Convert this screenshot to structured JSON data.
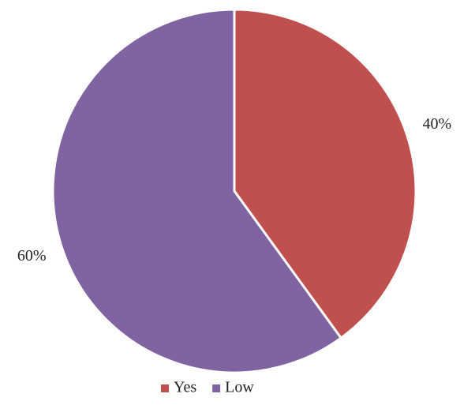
{
  "chart_data": {
    "type": "pie",
    "categories": [
      "Yes",
      "Low"
    ],
    "values": [
      40,
      60
    ],
    "value_labels": [
      "40%",
      "60%"
    ],
    "colors": [
      "#c0504d",
      "#8064a2"
    ],
    "legend": "bottom"
  }
}
